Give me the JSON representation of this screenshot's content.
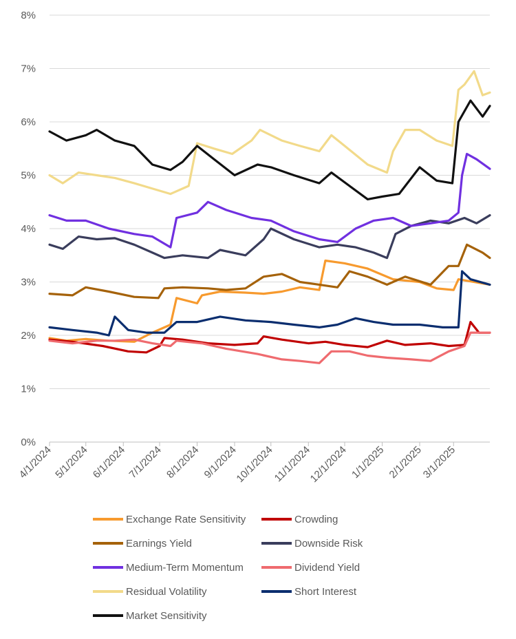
{
  "chart_data": {
    "type": "line",
    "title": "",
    "xlabel": "",
    "ylabel": "",
    "ylim": [
      0,
      8
    ],
    "y_ticks": [
      "0%",
      "1%",
      "2%",
      "3%",
      "4%",
      "5%",
      "6%",
      "7%",
      "8%"
    ],
    "x_ticks": [
      "4/1/2024",
      "5/1/2024",
      "6/1/2024",
      "7/1/2024",
      "8/1/2024",
      "9/1/2024",
      "10/1/2024",
      "11/1/2024",
      "12/1/2024",
      "1/1/2025",
      "2/1/2025",
      "3/1/2025"
    ],
    "xlim": [
      "2024-04-01",
      "2025-03-31"
    ],
    "grid": "horizontal",
    "legend_position": "bottom",
    "series": [
      {
        "name": "Exchange Rate Sensitivity",
        "color": "#F79A2E",
        "points": [
          [
            "2024-04-01",
            1.95
          ],
          [
            "2024-04-15",
            1.9
          ],
          [
            "2024-05-01",
            1.93
          ],
          [
            "2024-05-20",
            1.9
          ],
          [
            "2024-06-10",
            1.88
          ],
          [
            "2024-06-25",
            2.05
          ],
          [
            "2024-07-10",
            2.2
          ],
          [
            "2024-07-15",
            2.7
          ],
          [
            "2024-08-01",
            2.6
          ],
          [
            "2024-08-05",
            2.75
          ],
          [
            "2024-08-20",
            2.82
          ],
          [
            "2024-09-10",
            2.8
          ],
          [
            "2024-09-25",
            2.78
          ],
          [
            "2024-10-10",
            2.82
          ],
          [
            "2024-10-25",
            2.9
          ],
          [
            "2024-11-10",
            2.85
          ],
          [
            "2024-11-15",
            3.4
          ],
          [
            "2024-12-01",
            3.35
          ],
          [
            "2024-12-20",
            3.25
          ],
          [
            "2025-01-10",
            3.05
          ],
          [
            "2025-02-01",
            3.0
          ],
          [
            "2025-02-15",
            2.88
          ],
          [
            "2025-03-01",
            2.85
          ],
          [
            "2025-03-05",
            3.05
          ],
          [
            "2025-03-31",
            2.95
          ]
        ]
      },
      {
        "name": "Crowding",
        "color": "#C00000",
        "points": [
          [
            "2024-04-01",
            1.92
          ],
          [
            "2024-04-20",
            1.88
          ],
          [
            "2024-05-15",
            1.8
          ],
          [
            "2024-06-05",
            1.7
          ],
          [
            "2024-06-20",
            1.68
          ],
          [
            "2024-07-01",
            1.8
          ],
          [
            "2024-07-05",
            1.95
          ],
          [
            "2024-07-20",
            1.92
          ],
          [
            "2024-08-10",
            1.85
          ],
          [
            "2024-09-01",
            1.82
          ],
          [
            "2024-09-20",
            1.85
          ],
          [
            "2024-09-25",
            1.98
          ],
          [
            "2024-10-10",
            1.92
          ],
          [
            "2024-11-01",
            1.85
          ],
          [
            "2024-11-15",
            1.88
          ],
          [
            "2024-12-01",
            1.82
          ],
          [
            "2024-12-20",
            1.78
          ],
          [
            "2025-01-05",
            1.9
          ],
          [
            "2025-01-20",
            1.82
          ],
          [
            "2025-02-10",
            1.85
          ],
          [
            "2025-02-25",
            1.8
          ],
          [
            "2025-03-10",
            1.82
          ],
          [
            "2025-03-15",
            2.25
          ],
          [
            "2025-03-22",
            2.05
          ],
          [
            "2025-03-31",
            2.05
          ]
        ]
      },
      {
        "name": "Earnings Yield",
        "color": "#A5620A",
        "points": [
          [
            "2024-04-01",
            2.78
          ],
          [
            "2024-04-20",
            2.75
          ],
          [
            "2024-05-01",
            2.9
          ],
          [
            "2024-05-20",
            2.82
          ],
          [
            "2024-06-10",
            2.72
          ],
          [
            "2024-06-30",
            2.7
          ],
          [
            "2024-07-05",
            2.88
          ],
          [
            "2024-07-20",
            2.9
          ],
          [
            "2024-08-10",
            2.88
          ],
          [
            "2024-08-25",
            2.85
          ],
          [
            "2024-09-10",
            2.88
          ],
          [
            "2024-09-25",
            3.1
          ],
          [
            "2024-10-10",
            3.15
          ],
          [
            "2024-10-25",
            3.0
          ],
          [
            "2024-11-10",
            2.95
          ],
          [
            "2024-11-25",
            2.9
          ],
          [
            "2024-12-05",
            3.2
          ],
          [
            "2024-12-20",
            3.1
          ],
          [
            "2025-01-05",
            2.95
          ],
          [
            "2025-01-20",
            3.1
          ],
          [
            "2025-02-10",
            2.95
          ],
          [
            "2025-02-25",
            3.3
          ],
          [
            "2025-03-05",
            3.3
          ],
          [
            "2025-03-12",
            3.7
          ],
          [
            "2025-03-25",
            3.55
          ],
          [
            "2025-03-31",
            3.45
          ]
        ]
      },
      {
        "name": "Downside Risk",
        "color": "#3A3D5C",
        "points": [
          [
            "2024-04-01",
            3.7
          ],
          [
            "2024-04-12",
            3.62
          ],
          [
            "2024-04-25",
            3.85
          ],
          [
            "2024-05-10",
            3.8
          ],
          [
            "2024-05-25",
            3.82
          ],
          [
            "2024-06-10",
            3.7
          ],
          [
            "2024-06-25",
            3.55
          ],
          [
            "2024-07-05",
            3.45
          ],
          [
            "2024-07-20",
            3.5
          ],
          [
            "2024-08-10",
            3.45
          ],
          [
            "2024-08-20",
            3.6
          ],
          [
            "2024-09-10",
            3.5
          ],
          [
            "2024-09-25",
            3.8
          ],
          [
            "2024-10-01",
            4.0
          ],
          [
            "2024-10-20",
            3.8
          ],
          [
            "2024-11-10",
            3.65
          ],
          [
            "2024-11-25",
            3.7
          ],
          [
            "2024-12-10",
            3.65
          ],
          [
            "2024-12-25",
            3.55
          ],
          [
            "2025-01-05",
            3.45
          ],
          [
            "2025-01-12",
            3.9
          ],
          [
            "2025-01-25",
            4.05
          ],
          [
            "2025-02-10",
            4.15
          ],
          [
            "2025-02-25",
            4.1
          ],
          [
            "2025-03-10",
            4.2
          ],
          [
            "2025-03-20",
            4.1
          ],
          [
            "2025-03-31",
            4.25
          ]
        ]
      },
      {
        "name": "Medium-Term Momentum",
        "color": "#7030E0",
        "points": [
          [
            "2024-04-01",
            4.25
          ],
          [
            "2024-04-15",
            4.15
          ],
          [
            "2024-05-01",
            4.15
          ],
          [
            "2024-05-20",
            4.0
          ],
          [
            "2024-06-10",
            3.9
          ],
          [
            "2024-06-25",
            3.85
          ],
          [
            "2024-07-10",
            3.65
          ],
          [
            "2024-07-15",
            4.2
          ],
          [
            "2024-08-01",
            4.3
          ],
          [
            "2024-08-10",
            4.5
          ],
          [
            "2024-08-25",
            4.35
          ],
          [
            "2024-09-15",
            4.2
          ],
          [
            "2024-10-01",
            4.15
          ],
          [
            "2024-10-20",
            3.95
          ],
          [
            "2024-11-10",
            3.8
          ],
          [
            "2024-11-25",
            3.75
          ],
          [
            "2024-12-10",
            4.0
          ],
          [
            "2024-12-25",
            4.15
          ],
          [
            "2025-01-10",
            4.2
          ],
          [
            "2025-01-25",
            4.05
          ],
          [
            "2025-02-10",
            4.1
          ],
          [
            "2025-02-25",
            4.15
          ],
          [
            "2025-03-05",
            4.3
          ],
          [
            "2025-03-08",
            5.0
          ],
          [
            "2025-03-12",
            5.4
          ],
          [
            "2025-03-20",
            5.3
          ],
          [
            "2025-03-31",
            5.12
          ]
        ]
      },
      {
        "name": "Dividend Yield",
        "color": "#EF6B6F",
        "points": [
          [
            "2024-04-01",
            1.9
          ],
          [
            "2024-04-20",
            1.85
          ],
          [
            "2024-05-10",
            1.9
          ],
          [
            "2024-05-25",
            1.9
          ],
          [
            "2024-06-10",
            1.92
          ],
          [
            "2024-06-25",
            1.85
          ],
          [
            "2024-07-10",
            1.8
          ],
          [
            "2024-07-15",
            1.9
          ],
          [
            "2024-08-05",
            1.85
          ],
          [
            "2024-08-25",
            1.75
          ],
          [
            "2024-09-20",
            1.65
          ],
          [
            "2024-10-10",
            1.55
          ],
          [
            "2024-10-25",
            1.52
          ],
          [
            "2024-11-10",
            1.48
          ],
          [
            "2024-11-20",
            1.7
          ],
          [
            "2024-12-05",
            1.7
          ],
          [
            "2024-12-20",
            1.62
          ],
          [
            "2025-01-05",
            1.58
          ],
          [
            "2025-01-25",
            1.55
          ],
          [
            "2025-02-10",
            1.52
          ],
          [
            "2025-02-25",
            1.7
          ],
          [
            "2025-03-10",
            1.8
          ],
          [
            "2025-03-15",
            2.05
          ],
          [
            "2025-03-31",
            2.05
          ]
        ]
      },
      {
        "name": "Residual Volatility",
        "color": "#F2DA8A",
        "points": [
          [
            "2024-04-01",
            5.0
          ],
          [
            "2024-04-12",
            4.85
          ],
          [
            "2024-04-25",
            5.05
          ],
          [
            "2024-05-10",
            5.0
          ],
          [
            "2024-05-25",
            4.95
          ],
          [
            "2024-06-10",
            4.85
          ],
          [
            "2024-06-25",
            4.75
          ],
          [
            "2024-07-10",
            4.65
          ],
          [
            "2024-07-25",
            4.8
          ],
          [
            "2024-08-01",
            5.6
          ],
          [
            "2024-08-15",
            5.5
          ],
          [
            "2024-08-30",
            5.4
          ],
          [
            "2024-09-15",
            5.65
          ],
          [
            "2024-09-22",
            5.85
          ],
          [
            "2024-10-10",
            5.65
          ],
          [
            "2024-10-25",
            5.55
          ],
          [
            "2024-11-10",
            5.45
          ],
          [
            "2024-11-20",
            5.75
          ],
          [
            "2024-12-01",
            5.55
          ],
          [
            "2024-12-20",
            5.2
          ],
          [
            "2025-01-05",
            5.05
          ],
          [
            "2025-01-10",
            5.45
          ],
          [
            "2025-01-20",
            5.85
          ],
          [
            "2025-02-01",
            5.85
          ],
          [
            "2025-02-15",
            5.65
          ],
          [
            "2025-02-28",
            5.55
          ],
          [
            "2025-03-05",
            6.6
          ],
          [
            "2025-03-10",
            6.7
          ],
          [
            "2025-03-18",
            6.95
          ],
          [
            "2025-03-25",
            6.5
          ],
          [
            "2025-03-31",
            6.55
          ]
        ]
      },
      {
        "name": "Short Interest",
        "color": "#0B2E6F",
        "points": [
          [
            "2024-04-01",
            2.15
          ],
          [
            "2024-04-20",
            2.1
          ],
          [
            "2024-05-10",
            2.05
          ],
          [
            "2024-05-20",
            2.0
          ],
          [
            "2024-05-25",
            2.35
          ],
          [
            "2024-06-05",
            2.1
          ],
          [
            "2024-06-20",
            2.05
          ],
          [
            "2024-07-05",
            2.05
          ],
          [
            "2024-07-15",
            2.25
          ],
          [
            "2024-08-01",
            2.25
          ],
          [
            "2024-08-20",
            2.35
          ],
          [
            "2024-09-10",
            2.28
          ],
          [
            "2024-10-01",
            2.25
          ],
          [
            "2024-10-20",
            2.2
          ],
          [
            "2024-11-10",
            2.15
          ],
          [
            "2024-11-25",
            2.2
          ],
          [
            "2024-12-10",
            2.32
          ],
          [
            "2024-12-25",
            2.25
          ],
          [
            "2025-01-10",
            2.2
          ],
          [
            "2025-02-01",
            2.2
          ],
          [
            "2025-02-20",
            2.15
          ],
          [
            "2025-03-05",
            2.15
          ],
          [
            "2025-03-08",
            3.2
          ],
          [
            "2025-03-15",
            3.05
          ],
          [
            "2025-03-31",
            2.95
          ]
        ]
      },
      {
        "name": "Market Sensitivity",
        "color": "#111111",
        "points": [
          [
            "2024-04-01",
            5.82
          ],
          [
            "2024-04-15",
            5.65
          ],
          [
            "2024-05-01",
            5.75
          ],
          [
            "2024-05-10",
            5.85
          ],
          [
            "2024-05-25",
            5.65
          ],
          [
            "2024-06-10",
            5.55
          ],
          [
            "2024-06-25",
            5.2
          ],
          [
            "2024-07-10",
            5.1
          ],
          [
            "2024-07-20",
            5.25
          ],
          [
            "2024-08-01",
            5.55
          ],
          [
            "2024-08-15",
            5.3
          ],
          [
            "2024-09-01",
            5.0
          ],
          [
            "2024-09-20",
            5.2
          ],
          [
            "2024-10-01",
            5.15
          ],
          [
            "2024-10-20",
            5.0
          ],
          [
            "2024-11-10",
            4.85
          ],
          [
            "2024-11-20",
            5.05
          ],
          [
            "2024-12-05",
            4.8
          ],
          [
            "2024-12-20",
            4.55
          ],
          [
            "2025-01-01",
            4.6
          ],
          [
            "2025-01-15",
            4.65
          ],
          [
            "2025-02-01",
            5.15
          ],
          [
            "2025-02-15",
            4.9
          ],
          [
            "2025-02-28",
            4.85
          ],
          [
            "2025-03-05",
            6.0
          ],
          [
            "2025-03-15",
            6.4
          ],
          [
            "2025-03-25",
            6.1
          ],
          [
            "2025-03-31",
            6.3
          ]
        ]
      }
    ]
  }
}
